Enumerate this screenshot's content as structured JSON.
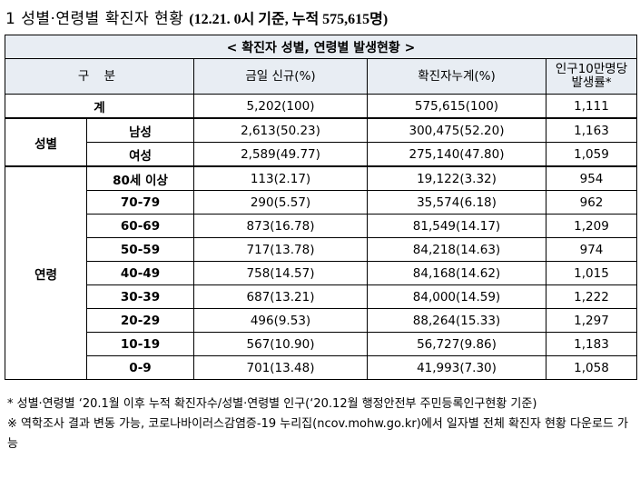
{
  "heading": {
    "main": "1  성별·연령별 확진자 현황 ",
    "sub": "(12.21. 0시 기준, 누적 575,615명)"
  },
  "table": {
    "caption": "< 확진자 성별, 연령별 발생현황 >",
    "headers": {
      "gubun": "구 분",
      "today": "금일 신규(%)",
      "cumulative": "확진자누계(%)",
      "rate_line1": "인구10만명당",
      "rate_line2": "발생률*"
    },
    "total": {
      "label": "계",
      "today": "5,202(100)",
      "cumulative": "575,615(100)",
      "rate": "1,111"
    },
    "sex": {
      "group": "성별",
      "rows": [
        {
          "label": "남성",
          "today": "2,613(50.23)",
          "cumulative": "300,475(52.20)",
          "rate": "1,163"
        },
        {
          "label": "여성",
          "today": "2,589(49.77)",
          "cumulative": "275,140(47.80)",
          "rate": "1,059"
        }
      ]
    },
    "age": {
      "group": "연령",
      "rows": [
        {
          "label": "80세 이상",
          "today": "113(2.17)",
          "cumulative": "19,122(3.32)",
          "rate": "954"
        },
        {
          "label": "70-79",
          "today": "290(5.57)",
          "cumulative": "35,574(6.18)",
          "rate": "962"
        },
        {
          "label": "60-69",
          "today": "873(16.78)",
          "cumulative": "81,549(14.17)",
          "rate": "1,209"
        },
        {
          "label": "50-59",
          "today": "717(13.78)",
          "cumulative": "84,218(14.63)",
          "rate": "974"
        },
        {
          "label": "40-49",
          "today": "758(14.57)",
          "cumulative": "84,168(14.62)",
          "rate": "1,015"
        },
        {
          "label": "30-39",
          "today": "687(13.21)",
          "cumulative": "84,000(14.59)",
          "rate": "1,222"
        },
        {
          "label": "20-29",
          "today": "496(9.53)",
          "cumulative": "88,264(15.33)",
          "rate": "1,297"
        },
        {
          "label": "10-19",
          "today": "567(10.90)",
          "cumulative": "56,727(9.86)",
          "rate": "1,183"
        },
        {
          "label": "0-9",
          "today": "701(13.48)",
          "cumulative": "41,993(7.30)",
          "rate": "1,058"
        }
      ]
    }
  },
  "notes": {
    "note1": "* 성별·연령별 ‘20.1월 이후 누적 확진자수/성별·연령별 인구(‘20.12월 행정안전부 주민등록인구현황 기준)",
    "note2": "※ 역학조사 결과 변동 가능, 코로나바이러스감염증-19 누리집(ncov.mohw.go.kr)에서 일자별 전체 확진자 현황 다운로드 가능"
  }
}
